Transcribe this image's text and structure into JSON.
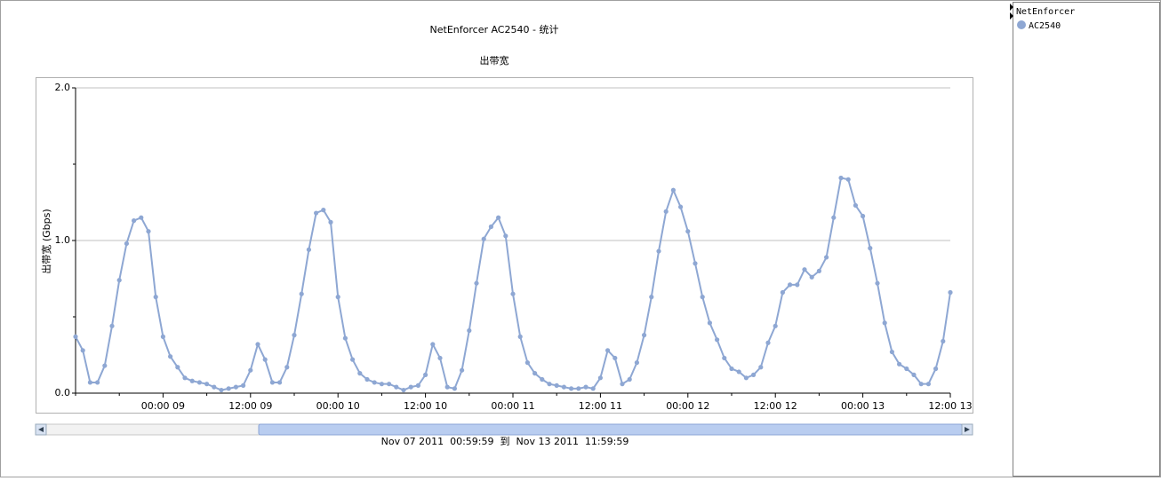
{
  "chart_data": {
    "type": "line",
    "title": "NetEnforcer AC2540 - 统计",
    "subtitle": "出带宽",
    "y_label": "出带宽 (Gbps)",
    "categories": [
      null,
      null,
      null,
      null,
      null,
      null,
      null,
      null,
      null,
      null,
      null,
      null,
      "00:00 09",
      null,
      null,
      null,
      null,
      null,
      null,
      null,
      null,
      null,
      null,
      null,
      "12:00 09",
      null,
      null,
      null,
      null,
      null,
      null,
      null,
      null,
      null,
      null,
      null,
      "00:00 10",
      null,
      null,
      null,
      null,
      null,
      null,
      null,
      null,
      null,
      null,
      null,
      "12:00 10",
      null,
      null,
      null,
      null,
      null,
      null,
      null,
      null,
      null,
      null,
      null,
      "00:00 11",
      null,
      null,
      null,
      null,
      null,
      null,
      null,
      null,
      null,
      null,
      null,
      "12:00 11",
      null,
      null,
      null,
      null,
      null,
      null,
      null,
      null,
      null,
      null,
      null,
      "00:00 12",
      null,
      null,
      null,
      null,
      null,
      null,
      null,
      null,
      null,
      null,
      null,
      "12:00 12",
      null,
      null,
      null,
      null,
      null,
      null,
      null,
      null,
      null,
      null,
      null,
      "00:00 13",
      null,
      null,
      null,
      null,
      null,
      null,
      null,
      null,
      null,
      null,
      null,
      "12:00 13"
    ],
    "series": [
      {
        "name": "AC2540",
        "color": "#8ea7d3",
        "values": [
          0.37,
          0.28,
          0.07,
          0.07,
          0.18,
          0.44,
          0.74,
          0.98,
          1.13,
          1.15,
          1.06,
          0.63,
          0.37,
          0.24,
          0.17,
          0.1,
          0.08,
          0.07,
          0.06,
          0.04,
          0.02,
          0.03,
          0.04,
          0.05,
          0.15,
          0.32,
          0.22,
          0.07,
          0.07,
          0.17,
          0.38,
          0.65,
          0.94,
          1.18,
          1.2,
          1.12,
          0.63,
          0.36,
          0.22,
          0.13,
          0.09,
          0.07,
          0.06,
          0.06,
          0.04,
          0.02,
          0.04,
          0.05,
          0.12,
          0.32,
          0.23,
          0.04,
          0.03,
          0.15,
          0.41,
          0.72,
          1.01,
          1.09,
          1.15,
          1.03,
          0.65,
          0.37,
          0.2,
          0.13,
          0.09,
          0.06,
          0.05,
          0.04,
          0.03,
          0.03,
          0.04,
          0.03,
          0.1,
          0.28,
          0.23,
          0.06,
          0.09,
          0.2,
          0.38,
          0.63,
          0.93,
          1.19,
          1.33,
          1.22,
          1.06,
          0.85,
          0.63,
          0.46,
          0.35,
          0.23,
          0.16,
          0.14,
          0.1,
          0.12,
          0.17,
          0.33,
          0.44,
          0.66,
          0.71,
          0.71,
          0.81,
          0.76,
          0.8,
          0.89,
          1.15,
          1.41,
          1.4,
          1.23,
          1.16,
          0.95,
          0.72,
          0.46,
          0.27,
          0.19,
          0.16,
          0.12,
          0.06,
          0.06,
          0.16,
          0.34,
          0.66
        ]
      }
    ],
    "ylim": [
      0,
      2
    ],
    "yticks": [
      {
        "value": 0,
        "label": "0.0"
      },
      {
        "value": 1,
        "label": "1.0"
      },
      {
        "value": 2,
        "label": "2.0"
      }
    ],
    "grid": true
  },
  "range_text": "Nov 07 2011  00:59:59  到  Nov 13 2011  11:59:59",
  "legend_group": "NetEnforcer"
}
